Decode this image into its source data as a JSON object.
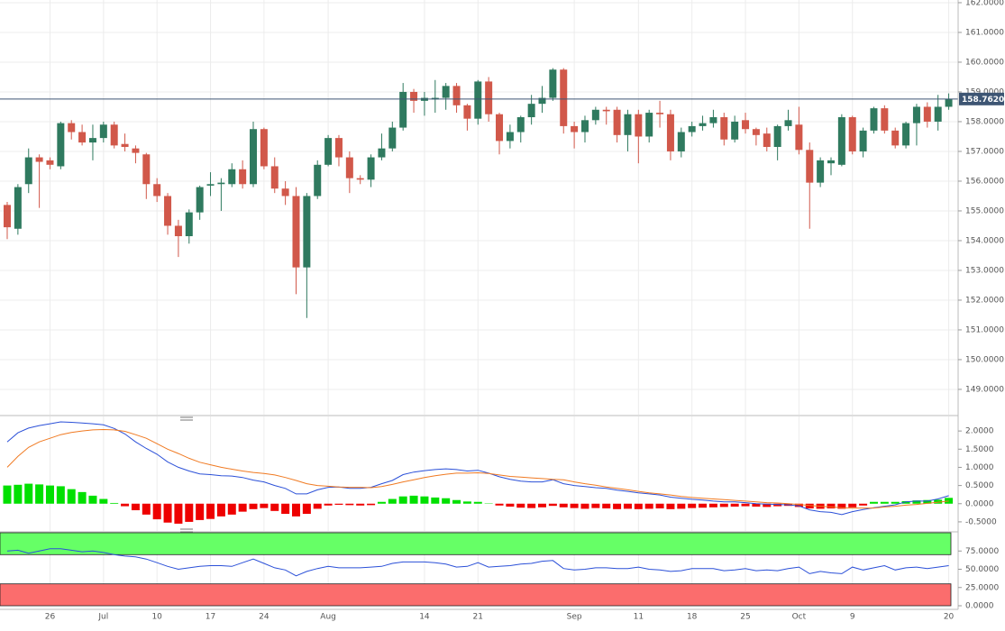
{
  "chart_data": [
    {
      "type": "candlestick",
      "categories": [
        null,
        null,
        null,
        null,
        "26",
        null,
        null,
        null,
        null,
        "Jul",
        null,
        null,
        null,
        null,
        "10",
        null,
        null,
        null,
        null,
        "17",
        null,
        null,
        null,
        null,
        "24",
        null,
        null,
        null,
        null,
        null,
        "Aug",
        null,
        null,
        null,
        null,
        null,
        null,
        null,
        null,
        "14",
        null,
        null,
        null,
        null,
        "21",
        null,
        null,
        null,
        null,
        null,
        null,
        null,
        null,
        "Sep",
        null,
        null,
        null,
        null,
        null,
        "11",
        null,
        null,
        null,
        null,
        "18",
        null,
        null,
        null,
        null,
        "25",
        null,
        null,
        null,
        null,
        "Oct",
        null,
        null,
        null,
        null,
        "9",
        null,
        null,
        null,
        null,
        null,
        null,
        null,
        null,
        "20"
      ],
      "open": [
        155.2,
        154.4,
        155.9,
        156.8,
        156.7,
        156.5,
        157.95,
        157.65,
        157.3,
        157.45,
        157.9,
        157.25,
        157.1,
        156.9,
        155.9,
        155.5,
        154.5,
        154.15,
        154.95,
        155.85,
        155.9,
        155.9,
        156.4,
        155.9,
        157.75,
        156.5,
        155.75,
        155.5,
        153.1,
        155.5,
        156.55,
        157.45,
        156.8,
        156.1,
        156.05,
        156.8,
        157.1,
        157.8,
        159.0,
        158.7,
        158.75,
        158.8,
        159.2,
        158.55,
        158.1,
        159.35,
        158.25,
        157.35,
        157.65,
        158.15,
        158.6,
        158.8,
        159.75,
        157.85,
        157.65,
        158.05,
        158.4,
        158.4,
        157.55,
        158.25,
        157.5,
        158.3,
        158.25,
        157.0,
        157.65,
        157.85,
        157.95,
        158.15,
        157.4,
        158.05,
        157.75,
        157.6,
        157.15,
        157.85,
        157.9,
        157.05,
        155.95,
        156.6,
        156.55,
        158.15,
        157.0,
        157.7,
        158.45,
        157.7,
        157.2,
        157.95,
        158.5,
        158.0,
        158.5
      ],
      "high": [
        155.3,
        155.9,
        157.1,
        156.9,
        156.8,
        158.0,
        158.05,
        157.9,
        157.9,
        158.0,
        158.0,
        157.6,
        157.2,
        156.95,
        156.1,
        155.6,
        154.7,
        155.05,
        155.85,
        156.3,
        156.1,
        156.6,
        156.7,
        158.0,
        157.8,
        156.8,
        156.0,
        155.8,
        155.6,
        156.7,
        157.55,
        157.55,
        157.0,
        156.2,
        156.9,
        157.6,
        158.0,
        159.3,
        159.1,
        159.0,
        159.4,
        159.3,
        159.3,
        158.6,
        159.4,
        159.5,
        158.3,
        157.9,
        158.2,
        158.9,
        159.2,
        159.8,
        159.8,
        158.0,
        158.2,
        158.5,
        158.5,
        158.5,
        158.4,
        158.4,
        158.4,
        158.7,
        158.4,
        157.8,
        158.0,
        158.2,
        158.4,
        158.3,
        158.2,
        158.3,
        157.8,
        157.8,
        157.9,
        158.4,
        158.5,
        157.3,
        156.8,
        156.8,
        158.25,
        158.2,
        157.8,
        158.5,
        158.55,
        157.8,
        158.0,
        158.6,
        158.65,
        158.9,
        158.95
      ],
      "low": [
        154.05,
        154.2,
        155.6,
        155.1,
        156.4,
        156.4,
        157.4,
        157.2,
        156.7,
        157.3,
        157.1,
        157.0,
        156.6,
        155.4,
        155.3,
        154.2,
        153.45,
        153.9,
        154.7,
        155.5,
        155.0,
        155.8,
        155.75,
        155.8,
        156.4,
        155.6,
        155.2,
        152.2,
        151.4,
        155.4,
        156.5,
        156.5,
        155.6,
        155.9,
        155.8,
        156.7,
        157.0,
        157.7,
        158.3,
        158.2,
        158.3,
        158.4,
        158.3,
        157.7,
        157.9,
        158.0,
        156.9,
        157.1,
        157.3,
        157.9,
        158.3,
        158.7,
        157.6,
        157.1,
        157.3,
        157.9,
        157.9,
        157.3,
        157.0,
        156.6,
        157.3,
        157.8,
        156.7,
        156.8,
        157.5,
        157.7,
        157.8,
        157.2,
        157.3,
        157.6,
        157.2,
        157.0,
        156.7,
        157.7,
        156.9,
        154.4,
        155.8,
        156.2,
        156.5,
        156.9,
        156.8,
        157.6,
        157.6,
        157.1,
        157.1,
        157.2,
        157.8,
        157.7,
        158.4
      ],
      "close": [
        154.45,
        155.8,
        156.8,
        156.65,
        156.55,
        157.95,
        157.65,
        157.3,
        157.45,
        157.9,
        157.2,
        157.15,
        156.95,
        155.9,
        155.5,
        154.5,
        154.15,
        154.95,
        155.8,
        155.9,
        155.95,
        156.4,
        155.9,
        157.75,
        156.5,
        155.75,
        155.5,
        153.1,
        155.5,
        156.55,
        157.45,
        156.8,
        156.1,
        156.05,
        156.8,
        157.1,
        157.8,
        159.0,
        158.7,
        158.8,
        158.8,
        159.2,
        158.55,
        158.1,
        159.35,
        158.25,
        157.35,
        157.65,
        158.15,
        158.6,
        158.8,
        159.75,
        157.85,
        157.65,
        158.05,
        158.4,
        158.35,
        157.55,
        158.25,
        157.5,
        158.3,
        158.25,
        157.0,
        157.65,
        157.85,
        157.95,
        158.15,
        157.4,
        158.0,
        157.75,
        157.55,
        157.15,
        157.85,
        158.05,
        157.05,
        155.95,
        156.7,
        156.7,
        158.15,
        157.0,
        157.7,
        158.45,
        157.7,
        157.2,
        157.95,
        158.5,
        158.0,
        158.5,
        158.762
      ],
      "up_color": "#2f7a5f",
      "down_color": "#d1584a",
      "ylim": [
        148.15,
        162.09
      ],
      "yticks": [
        {
          "value": 149,
          "label": "149.0000"
        },
        {
          "value": 150,
          "label": "150.0000"
        },
        {
          "value": 151,
          "label": "151.0000"
        },
        {
          "value": 152,
          "label": "152.0000"
        },
        {
          "value": 153,
          "label": "153.0000"
        },
        {
          "value": 154,
          "label": "154.0000"
        },
        {
          "value": 155,
          "label": "155.0000"
        },
        {
          "value": 156,
          "label": "156.0000"
        },
        {
          "value": 157,
          "label": "157.0000"
        },
        {
          "value": 158,
          "label": "158.0000"
        },
        {
          "value": 159,
          "label": "159.0000"
        },
        {
          "value": 160,
          "label": "160.0000"
        },
        {
          "value": 161,
          "label": "161.0000"
        },
        {
          "value": 162,
          "label": "162.0000"
        }
      ],
      "last_price": {
        "value": 158.762,
        "label": "158.7620"
      },
      "last_price_color": "#3d5573",
      "grid": true
    },
    {
      "type": "macd",
      "series": [
        {
          "color": "#2b50d8",
          "values": [
            1.7,
            1.95,
            2.08,
            2.15,
            2.2,
            2.25,
            2.24,
            2.22,
            2.2,
            2.17,
            2.07,
            1.92,
            1.7,
            1.52,
            1.36,
            1.15,
            1.0,
            0.9,
            0.82,
            0.8,
            0.77,
            0.76,
            0.72,
            0.65,
            0.6,
            0.5,
            0.42,
            0.27,
            0.27,
            0.38,
            0.45,
            0.46,
            0.42,
            0.42,
            0.45,
            0.55,
            0.64,
            0.8,
            0.87,
            0.91,
            0.94,
            0.96,
            0.94,
            0.9,
            0.92,
            0.84,
            0.74,
            0.67,
            0.62,
            0.6,
            0.6,
            0.66,
            0.55,
            0.5,
            0.47,
            0.44,
            0.42,
            0.37,
            0.34,
            0.3,
            0.27,
            0.24,
            0.18,
            0.15,
            0.12,
            0.1,
            0.07,
            0.05,
            0.05,
            0.03,
            0.0,
            -0.01,
            -0.02,
            -0.03,
            -0.06,
            -0.17,
            -0.22,
            -0.24,
            -0.3,
            -0.22,
            -0.16,
            -0.11,
            -0.07,
            -0.03,
            0.05,
            0.07,
            0.07,
            0.13,
            0.22
          ]
        },
        {
          "color": "#f07a22",
          "values": [
            1.0,
            1.3,
            1.55,
            1.7,
            1.8,
            1.9,
            1.96,
            2.0,
            2.03,
            2.04,
            2.03,
            1.99,
            1.9,
            1.8,
            1.65,
            1.5,
            1.38,
            1.25,
            1.14,
            1.07,
            1.0,
            0.95,
            0.9,
            0.86,
            0.83,
            0.79,
            0.72,
            0.64,
            0.55,
            0.5,
            0.48,
            0.46,
            0.45,
            0.45,
            0.44,
            0.47,
            0.53,
            0.6,
            0.66,
            0.72,
            0.77,
            0.81,
            0.84,
            0.84,
            0.85,
            0.83,
            0.79,
            0.75,
            0.73,
            0.71,
            0.69,
            0.67,
            0.66,
            0.6,
            0.55,
            0.51,
            0.46,
            0.42,
            0.38,
            0.34,
            0.3,
            0.27,
            0.24,
            0.2,
            0.17,
            0.15,
            0.13,
            0.11,
            0.09,
            0.07,
            0.05,
            0.03,
            0.02,
            0.0,
            -0.02,
            -0.05,
            -0.07,
            -0.09,
            -0.11,
            -0.12,
            -0.12,
            -0.12,
            -0.09,
            -0.07,
            -0.04,
            -0.02,
            0.01,
            0.04,
            0.07
          ]
        }
      ],
      "histogram": {
        "up_color": "#00e000",
        "down_color": "#ee0000",
        "values": [
          0.5,
          0.52,
          0.55,
          0.53,
          0.5,
          0.48,
          0.4,
          0.32,
          0.22,
          0.13,
          0.02,
          -0.07,
          -0.18,
          -0.3,
          -0.43,
          -0.52,
          -0.55,
          -0.5,
          -0.45,
          -0.42,
          -0.35,
          -0.3,
          -0.22,
          -0.15,
          -0.12,
          -0.2,
          -0.28,
          -0.35,
          -0.28,
          -0.14,
          -0.05,
          -0.03,
          -0.04,
          -0.05,
          -0.04,
          0.05,
          0.13,
          0.2,
          0.22,
          0.2,
          0.17,
          0.15,
          0.1,
          0.06,
          0.05,
          0.01,
          -0.05,
          -0.08,
          -0.11,
          -0.12,
          -0.1,
          -0.06,
          -0.1,
          -0.12,
          -0.14,
          -0.12,
          -0.13,
          -0.15,
          -0.14,
          -0.15,
          -0.14,
          -0.13,
          -0.15,
          -0.14,
          -0.12,
          -0.11,
          -0.1,
          -0.09,
          -0.08,
          -0.07,
          -0.08,
          -0.09,
          -0.07,
          -0.06,
          -0.09,
          -0.13,
          -0.14,
          -0.13,
          -0.14,
          -0.1,
          -0.05,
          0.05,
          0.05,
          0.05,
          0.07,
          0.09,
          0.1,
          0.11,
          0.16
        ]
      },
      "ylim": [
        -0.75,
        2.4
      ],
      "yticks": [
        {
          "value": -0.5,
          "label": "-0.5000"
        },
        {
          "value": 0,
          "label": "0.0000"
        },
        {
          "value": 0.5,
          "label": "0.5000"
        },
        {
          "value": 1,
          "label": "1.0000"
        },
        {
          "value": 1.5,
          "label": "1.5000"
        },
        {
          "value": 2,
          "label": "2.0000"
        }
      ],
      "grid": false
    },
    {
      "type": "rsi",
      "series": [
        {
          "color": "#2b50d8",
          "values": [
            75,
            76,
            72,
            75,
            78,
            78,
            76,
            74,
            75,
            73,
            70,
            68,
            67,
            64,
            59,
            54,
            50,
            52,
            54,
            55,
            55,
            54,
            59,
            64,
            58,
            52,
            49,
            41,
            47,
            51,
            54,
            52,
            52,
            52,
            53,
            54,
            58,
            60,
            60,
            60,
            59,
            57,
            53,
            54,
            59,
            53,
            54,
            55,
            57,
            58,
            61,
            62,
            51,
            49,
            50,
            52,
            52,
            51,
            51,
            53,
            50,
            49,
            47,
            48,
            51,
            51,
            51,
            48,
            49,
            51,
            48,
            49,
            48,
            51,
            53,
            44,
            47,
            45,
            44,
            53,
            49,
            52,
            55,
            49,
            52,
            53,
            51,
            53,
            55
          ]
        }
      ],
      "bands": [
        {
          "from": 70,
          "to": 100,
          "color": "#66ff66"
        },
        {
          "from": 0,
          "to": 30,
          "color": "#fb6d6d"
        }
      ],
      "ylim": [
        0,
        100
      ],
      "yticks": [
        {
          "value": 0,
          "label": "0.0000"
        },
        {
          "value": 25,
          "label": "25.0000"
        },
        {
          "value": 50,
          "label": "50.0000"
        },
        {
          "value": 75,
          "label": "75.0000"
        }
      ],
      "grid": false
    }
  ]
}
